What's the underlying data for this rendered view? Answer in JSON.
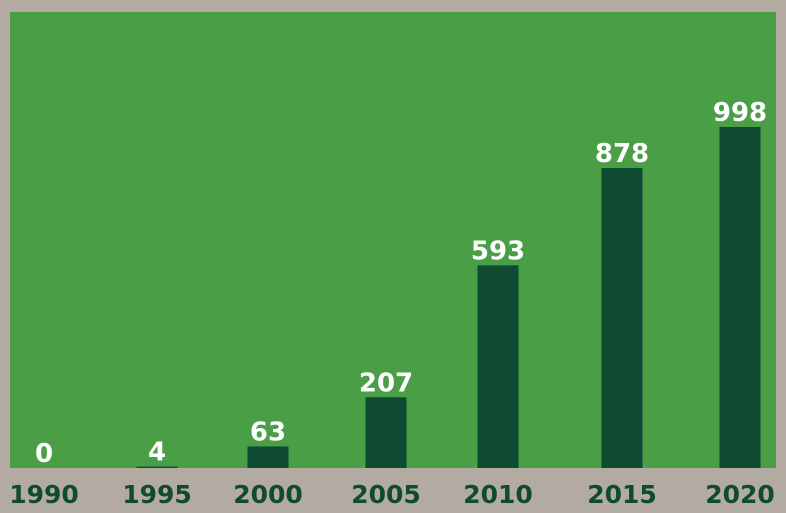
{
  "chart_data": {
    "type": "bar",
    "categories": [
      "1990",
      "1995",
      "2000",
      "2005",
      "2010",
      "2015",
      "2020"
    ],
    "values": [
      0,
      4,
      63,
      207,
      593,
      878,
      998
    ],
    "value_labels": [
      "0",
      "4",
      "63",
      "207",
      "593",
      "878",
      "998"
    ],
    "title": "",
    "xlabel": "",
    "ylabel": "",
    "ylim": [
      0,
      1000
    ],
    "grid": false,
    "colors": {
      "plot_background": "#4a9e46",
      "bar": "#0f4a33",
      "value_label": "#ffffff",
      "category_label": "#0f4a33",
      "page_background": "#b3aba2"
    }
  }
}
